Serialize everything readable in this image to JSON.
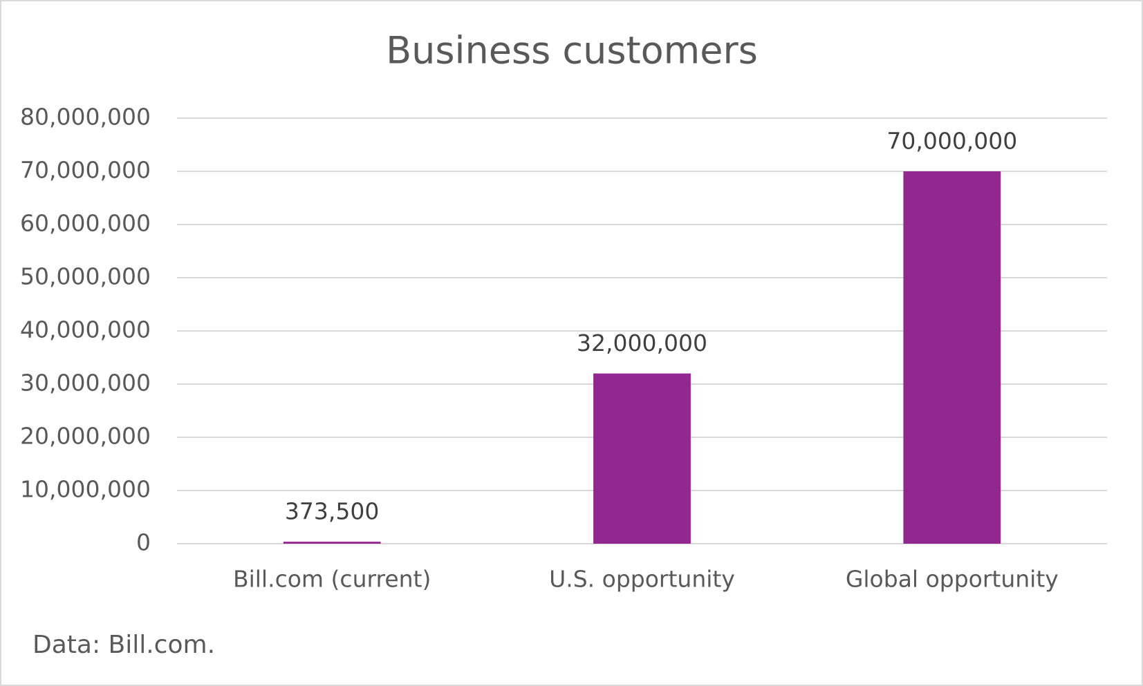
{
  "chart_data": {
    "type": "bar",
    "title": "Business customers",
    "categories": [
      "Bill.com (current)",
      "U.S. opportunity",
      "Global opportunity"
    ],
    "values": [
      373500,
      32000000,
      70000000
    ],
    "value_labels": [
      "373,500",
      "32,000,000",
      "70,000,000"
    ],
    "color": "#92278f",
    "ylim": [
      0,
      80000000
    ],
    "yticks": [
      0,
      {
        "value": 10000000,
        "label": "10,000,000"
      },
      {
        "value": 20000000,
        "label": "20,000,000"
      },
      {
        "value": 30000000,
        "label": "30,000,000"
      },
      {
        "value": 40000000,
        "label": "40,000,000"
      },
      {
        "value": 50000000,
        "label": "50,000,000"
      },
      {
        "value": 60000000,
        "label": "60,000,000"
      },
      {
        "value": 70000000,
        "label": "70,000,000"
      },
      {
        "value": 80000000,
        "label": "80,000,000"
      }
    ],
    "grid": true,
    "note": "Data: Bill.com."
  }
}
